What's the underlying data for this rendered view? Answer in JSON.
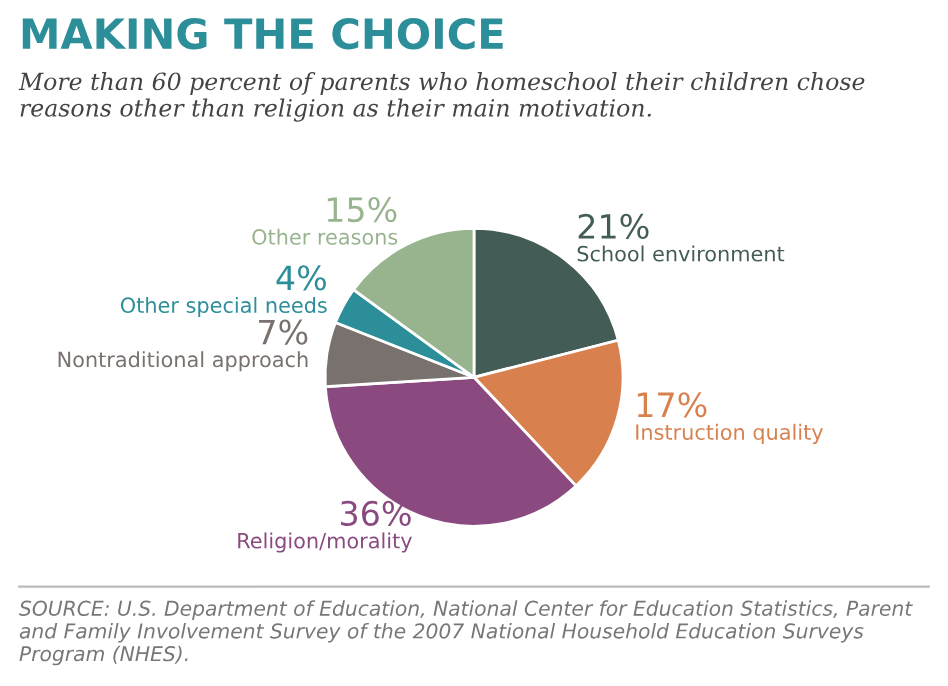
{
  "chart_data": {
    "type": "pie",
    "title": "MAKING THE CHOICE",
    "subtitle": "More than 60 percent of parents who homeschool their children chose reasons other than religion as their main motivation.",
    "categories": [
      "School environment",
      "Instruction quality",
      "Religion/morality",
      "Nontraditional approach",
      "Other special needs",
      "Other reasons"
    ],
    "values": [
      21,
      17,
      36,
      7,
      4,
      15
    ],
    "colors": [
      "#435c56",
      "#d8804e",
      "#8a4a80",
      "#78716d",
      "#2b8e98",
      "#98b48e"
    ],
    "value_labels": [
      "21%",
      "17%",
      "36%",
      "7%",
      "4%",
      "15%"
    ],
    "annotations": [
      "SOURCE: U.S. Department of Education, National Center for Education Statistics, Parent and Family Involvement Survey of the 2007 National Household Education Surveys Program (NHES)."
    ]
  }
}
